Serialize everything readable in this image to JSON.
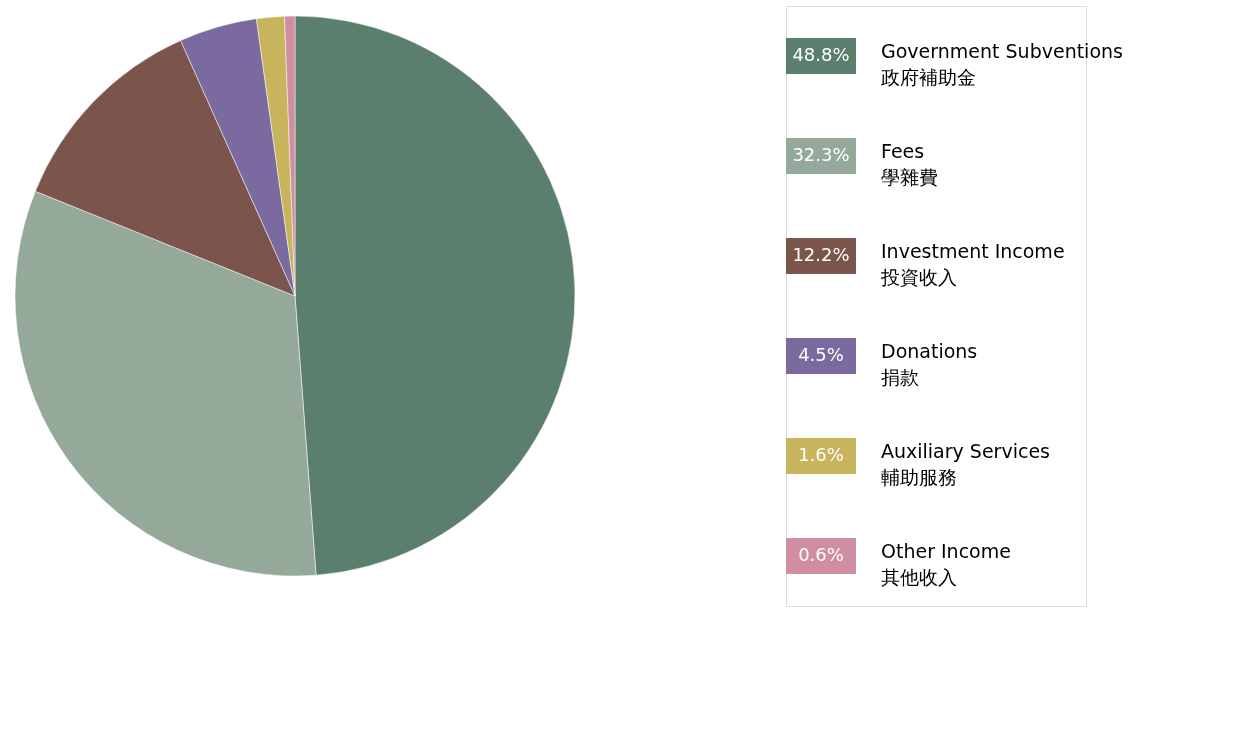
{
  "chart_data": {
    "type": "pie",
    "categories": [
      "Government Subventions\n政府補助金",
      "Fees\n學雜費",
      "Investment Income\n投資收入",
      "Donations\n捐款",
      "Auxiliary Services\n輔助服務",
      "Other Income\n其他收入"
    ],
    "values": [
      48.8,
      32.3,
      12.2,
      4.5,
      1.6,
      0.6
    ],
    "colors": [
      "#5a7f6c",
      "#95a99a",
      "#7b554c",
      "#7a6aa0",
      "#c8b45d",
      "#cf8fa0"
    ],
    "value_labels": [
      "48.8%",
      "32.3%",
      "12.2%",
      "4.5%",
      "1.6%",
      "0.6%"
    ],
    "legend": "right"
  }
}
